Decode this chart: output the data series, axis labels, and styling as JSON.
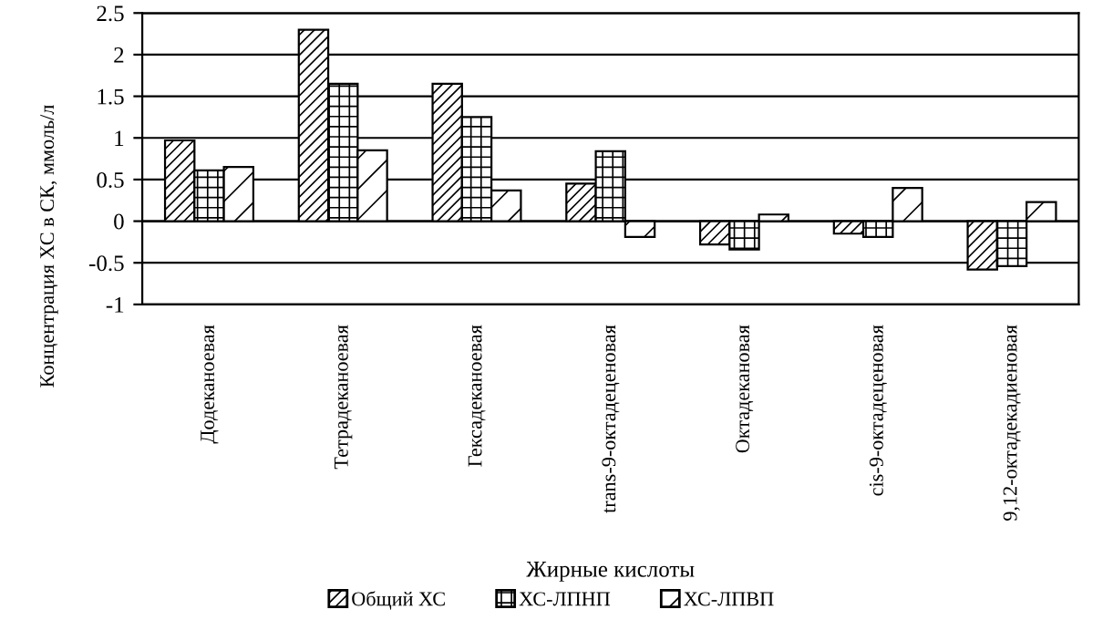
{
  "chart_data": {
    "type": "bar",
    "categories": [
      "Додеканоевая",
      "Тетрадеканоевая",
      "Гексадеканоевая",
      "trans-9-октадеценовая",
      "Октадекановая",
      "cis-9-октадеценовая",
      "9,12-октадекадиеновая"
    ],
    "series": [
      {
        "name": "Общий ХС",
        "color": "#000000",
        "values": [
          0.97,
          2.3,
          1.65,
          0.45,
          -0.28,
          -0.15,
          -0.58
        ]
      },
      {
        "name": "ХС-ЛПНП",
        "color": "#000000",
        "values": [
          0.61,
          1.65,
          1.25,
          0.84,
          -0.34,
          -0.19,
          -0.54
        ]
      },
      {
        "name": "ХС-ЛПВП",
        "color": "#000000",
        "values": [
          0.65,
          0.85,
          0.37,
          -0.19,
          0.08,
          0.4,
          0.23
        ]
      }
    ],
    "xlabel": "Жирные кислоты",
    "ylabel": "Концентрация ХС в СК, ммоль/л",
    "ylim": [
      -1,
      2.5
    ],
    "yticks": [
      -1,
      -0.5,
      0,
      0.5,
      1,
      1.5,
      2,
      2.5
    ],
    "grid": "y",
    "legend": "bottom"
  }
}
